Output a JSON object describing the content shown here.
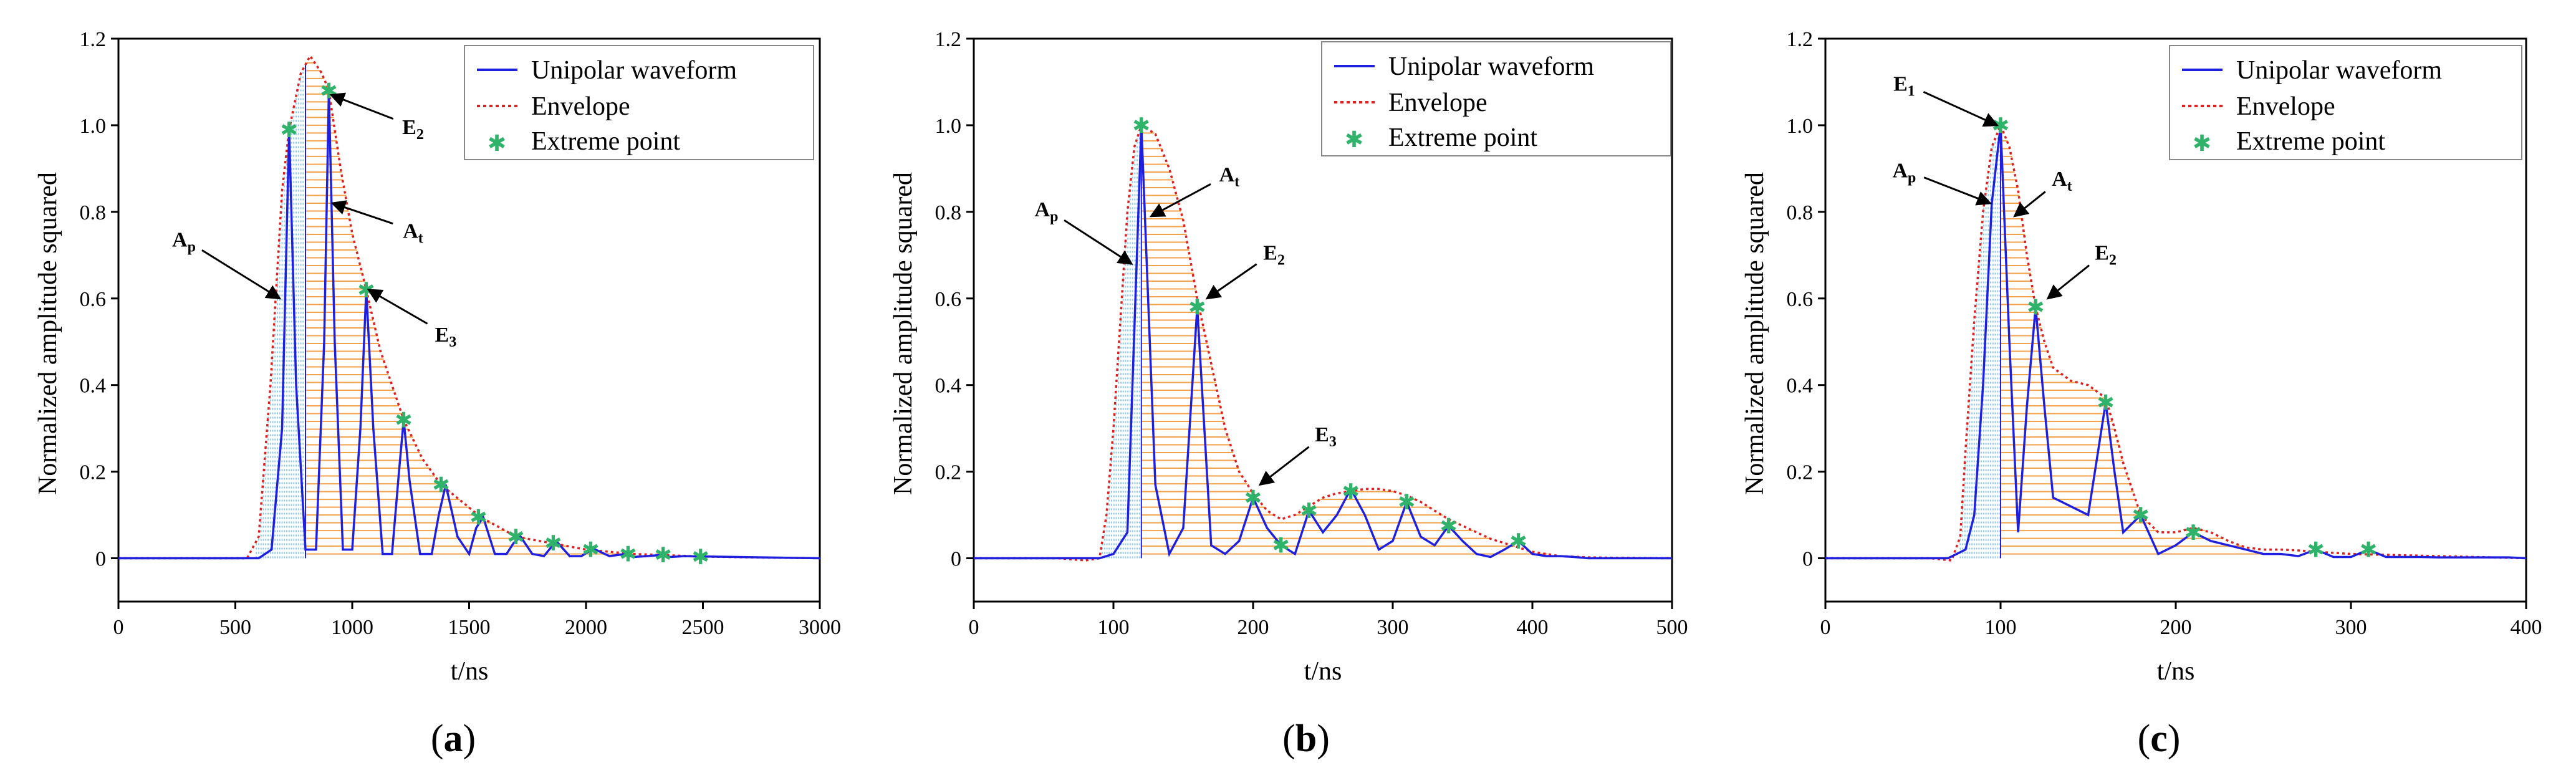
{
  "figure": {
    "panel_labels": [
      {
        "open": "(",
        "letter": "a",
        "close": ")"
      },
      {
        "open": "(",
        "letter": "b",
        "close": ")"
      },
      {
        "open": "(",
        "letter": "c",
        "close": ")"
      }
    ]
  },
  "colors": {
    "waveform": "#1f1fe0",
    "envelope": "#e02020",
    "extreme": "#2fb36a",
    "hatch_blue": "#8fc8e8",
    "hatch_orange": "#f2a24a"
  },
  "chart_data": [
    {
      "id": "a",
      "type": "line",
      "xlabel": "t/ns",
      "ylabel": "Normalized amplitude squared",
      "xlim": [
        0,
        3000
      ],
      "ylim": [
        -0.1,
        1.2
      ],
      "xticks": [
        "0",
        "500",
        "1000",
        "1500",
        "2000",
        "2500",
        "3000"
      ],
      "xtick_values": [
        0,
        500,
        1000,
        1500,
        2000,
        2500,
        3000
      ],
      "yticks": [
        "0",
        "0.2",
        "0.4",
        "0.6",
        "0.8",
        "1.0",
        "1.2"
      ],
      "ytick_values": [
        0,
        0.2,
        0.4,
        0.6,
        0.8,
        1.0,
        1.2
      ],
      "legend": {
        "position": "top-right",
        "entries": [
          "Unipolar waveform",
          "Envelope",
          "Extreme point"
        ]
      },
      "fill_split_x": 800,
      "fill_range": [
        590,
        2520
      ],
      "series": [
        {
          "name": "Unipolar waveform",
          "x": [
            0,
            600,
            655,
            700,
            730,
            760,
            800,
            845,
            880,
            900,
            925,
            960,
            1000,
            1035,
            1060,
            1090,
            1130,
            1170,
            1200,
            1220,
            1245,
            1290,
            1340,
            1370,
            1400,
            1450,
            1500,
            1530,
            1560,
            1610,
            1660,
            1690,
            1720,
            1770,
            1820,
            1850,
            1880,
            1930,
            1980,
            2010,
            2040,
            2100,
            2170,
            2200,
            2260,
            2330,
            2360,
            2420,
            2490,
            2520,
            3000
          ],
          "y": [
            0,
            0,
            0.02,
            0.3,
            0.99,
            0.4,
            0.02,
            0.02,
            0.5,
            1.08,
            0.5,
            0.02,
            0.02,
            0.3,
            0.62,
            0.3,
            0.01,
            0.01,
            0.2,
            0.32,
            0.18,
            0.01,
            0.01,
            0.1,
            0.17,
            0.05,
            0.01,
            0.07,
            0.095,
            0.01,
            0.01,
            0.035,
            0.05,
            0.01,
            0.005,
            0.025,
            0.035,
            0.005,
            0.005,
            0.015,
            0.02,
            0.005,
            0.01,
            0.003,
            0.005,
            0.008,
            0.003,
            0.005,
            0.004,
            0.004,
            0
          ]
        },
        {
          "name": "Envelope",
          "x": [
            0,
            550,
            600,
            650,
            700,
            730,
            780,
            820,
            870,
            900,
            950,
            1000,
            1060,
            1120,
            1220,
            1300,
            1380,
            1550,
            1700,
            1850,
            2000,
            2200,
            2500,
            2700,
            3000
          ],
          "y": [
            0,
            0,
            0.05,
            0.4,
            0.85,
            0.99,
            1.12,
            1.16,
            1.12,
            1.08,
            0.9,
            0.75,
            0.62,
            0.48,
            0.32,
            0.23,
            0.17,
            0.095,
            0.05,
            0.035,
            0.02,
            0.01,
            0.004,
            0.002,
            0
          ]
        }
      ],
      "extreme_points": {
        "x": [
          730,
          900,
          1060,
          1220,
          1380,
          1540,
          1700,
          1860,
          2020,
          2180,
          2330,
          2490
        ],
        "y": [
          0.99,
          1.08,
          0.62,
          0.32,
          0.17,
          0.095,
          0.05,
          0.035,
          0.02,
          0.01,
          0.008,
          0.004
        ]
      },
      "annotations": [
        {
          "main": "E",
          "sub": "2",
          "tip": [
            910,
            1.07
          ],
          "text_at": [
            1260,
            0.98
          ]
        },
        {
          "main": "A",
          "sub": "t",
          "tip": [
            915,
            0.82
          ],
          "text_at": [
            1260,
            0.74
          ]
        },
        {
          "main": "A",
          "sub": "p",
          "tip": [
            690,
            0.6
          ],
          "text_at": [
            280,
            0.72
          ]
        },
        {
          "main": "E",
          "sub": "3",
          "tip": [
            1070,
            0.62
          ],
          "text_at": [
            1400,
            0.5
          ]
        }
      ]
    },
    {
      "id": "b",
      "type": "line",
      "xlabel": "t/ns",
      "ylabel": "Normalized amplitude squared",
      "xlim": [
        0,
        500
      ],
      "ylim": [
        -0.1,
        1.2
      ],
      "xticks": [
        "0",
        "100",
        "200",
        "300",
        "400",
        "500"
      ],
      "xtick_values": [
        0,
        100,
        200,
        300,
        400,
        500
      ],
      "yticks": [
        "0",
        "0.2",
        "0.4",
        "0.6",
        "0.8",
        "1.0",
        "1.2"
      ],
      "ytick_values": [
        0,
        0.2,
        0.4,
        0.6,
        0.8,
        1.0,
        1.2
      ],
      "legend": {
        "position": "top-right",
        "entries": [
          "Unipolar waveform",
          "Envelope",
          "Extreme point"
        ]
      },
      "fill_split_x": 120,
      "fill_range": [
        92,
        435
      ],
      "series": [
        {
          "name": "Unipolar waveform",
          "x": [
            0,
            80,
            90,
            100,
            110,
            120,
            130,
            140,
            150,
            160,
            170,
            180,
            190,
            200,
            210,
            220,
            230,
            240,
            250,
            260,
            270,
            280,
            290,
            300,
            310,
            320,
            330,
            340,
            350,
            360,
            370,
            380,
            390,
            400,
            410,
            420,
            430,
            440,
            500
          ],
          "y": [
            0,
            0,
            0,
            0.01,
            0.06,
            1.0,
            0.17,
            0.01,
            0.07,
            0.58,
            0.03,
            0.01,
            0.04,
            0.14,
            0.07,
            0.03,
            0.01,
            0.11,
            0.06,
            0.1,
            0.16,
            0.1,
            0.02,
            0.04,
            0.13,
            0.05,
            0.03,
            0.075,
            0.04,
            0.01,
            0.003,
            0.02,
            0.04,
            0.01,
            0.005,
            0.005,
            0.003,
            0,
            0
          ]
        },
        {
          "name": "Envelope",
          "x": [
            0,
            60,
            80,
            90,
            95,
            100,
            105,
            110,
            115,
            120,
            130,
            140,
            150,
            160,
            170,
            180,
            190,
            200,
            210,
            220,
            230,
            240,
            250,
            260,
            270,
            280,
            290,
            300,
            310,
            320,
            330,
            340,
            350,
            360,
            370,
            380,
            390,
            400,
            420,
            440,
            460,
            500
          ],
          "y": [
            0,
            0,
            -0.005,
            0,
            0.1,
            0.3,
            0.55,
            0.8,
            0.95,
            1.0,
            0.98,
            0.9,
            0.78,
            0.6,
            0.45,
            0.3,
            0.2,
            0.15,
            0.11,
            0.09,
            0.1,
            0.12,
            0.14,
            0.15,
            0.155,
            0.16,
            0.16,
            0.155,
            0.145,
            0.13,
            0.11,
            0.09,
            0.075,
            0.06,
            0.045,
            0.035,
            0.025,
            0.015,
            0.005,
            0.002,
            0.001,
            0
          ]
        }
      ],
      "extreme_points": {
        "x": [
          120,
          160,
          200,
          220,
          240,
          270,
          310,
          340,
          390
        ],
        "y": [
          1.0,
          0.58,
          0.14,
          0.03,
          0.11,
          0.155,
          0.13,
          0.075,
          0.04
        ]
      },
      "annotations": [
        {
          "main": "A",
          "sub": "p",
          "tip": [
            113,
            0.68
          ],
          "text_at": [
            52,
            0.79
          ]
        },
        {
          "main": "A",
          "sub": "t",
          "tip": [
            127,
            0.79
          ],
          "text_at": [
            183,
            0.87
          ]
        },
        {
          "main": "E",
          "sub": "2",
          "tip": [
            167,
            0.6
          ],
          "text_at": [
            215,
            0.69
          ]
        },
        {
          "main": "E",
          "sub": "3",
          "tip": [
            205,
            0.17
          ],
          "text_at": [
            252,
            0.27
          ]
        }
      ]
    },
    {
      "id": "c",
      "type": "line",
      "xlabel": "t/ns",
      "ylabel": "Normalized amplitude squared",
      "xlim": [
        0,
        400
      ],
      "ylim": [
        -0.1,
        1.2
      ],
      "xticks": [
        "0",
        "100",
        "200",
        "300",
        "400"
      ],
      "xtick_values": [
        0,
        100,
        200,
        300,
        400
      ],
      "yticks": [
        "0",
        "0.2",
        "0.4",
        "0.6",
        "0.8",
        "1.0",
        "1.2"
      ],
      "ytick_values": [
        0,
        0.2,
        0.4,
        0.6,
        0.8,
        1.0,
        1.2
      ],
      "legend": {
        "position": "top-right",
        "entries": [
          "Unipolar waveform",
          "Envelope",
          "Extreme point"
        ]
      },
      "fill_split_x": 100,
      "fill_range": [
        77,
        250
      ],
      "series": [
        {
          "name": "Unipolar waveform",
          "x": [
            0,
            70,
            80,
            85,
            90,
            95,
            100,
            105,
            110,
            115,
            120,
            125,
            130,
            140,
            150,
            160,
            165,
            170,
            175,
            180,
            190,
            200,
            210,
            220,
            230,
            240,
            250,
            260,
            270,
            280,
            290,
            300,
            310,
            320,
            330,
            340,
            350,
            360,
            370,
            380,
            390,
            400
          ],
          "y": [
            0,
            0,
            0.02,
            0.1,
            0.4,
            0.82,
            1.0,
            0.5,
            0.06,
            0.35,
            0.58,
            0.35,
            0.14,
            0.12,
            0.1,
            0.36,
            0.2,
            0.06,
            0.08,
            0.1,
            0.01,
            0.03,
            0.06,
            0.04,
            0.03,
            0.02,
            0.01,
            0.01,
            0.005,
            0.02,
            0.003,
            0.003,
            0.02,
            0.003,
            0.003,
            0.003,
            0.002,
            0.002,
            0.002,
            0.002,
            0.002,
            0
          ]
        },
        {
          "name": "Envelope",
          "x": [
            0,
            60,
            72,
            77,
            80,
            85,
            90,
            95,
            100,
            105,
            110,
            115,
            120,
            125,
            130,
            140,
            150,
            160,
            165,
            170,
            180,
            190,
            200,
            210,
            220,
            230,
            240,
            250,
            260,
            270,
            280,
            300,
            320,
            350,
            400
          ],
          "y": [
            0,
            0,
            -0.005,
            0.05,
            0.25,
            0.55,
            0.8,
            0.95,
            1.0,
            0.95,
            0.85,
            0.7,
            0.58,
            0.5,
            0.44,
            0.41,
            0.4,
            0.37,
            0.3,
            0.22,
            0.1,
            0.06,
            0.06,
            0.07,
            0.06,
            0.04,
            0.025,
            0.02,
            0.02,
            0.018,
            0.015,
            0.01,
            0.008,
            0.005,
            0
          ]
        }
      ],
      "extreme_points": {
        "x": [
          100,
          120,
          160,
          180,
          210,
          280,
          310
        ],
        "y": [
          1.0,
          0.58,
          0.36,
          0.1,
          0.06,
          0.02,
          0.02
        ]
      },
      "annotations": [
        {
          "main": "E",
          "sub": "1",
          "tip": [
            98,
            1.0
          ],
          "text_at": [
            45,
            1.08
          ]
        },
        {
          "main": "A",
          "sub": "p",
          "tip": [
            94,
            0.82
          ],
          "text_at": [
            45,
            0.88
          ]
        },
        {
          "main": "A",
          "sub": "t",
          "tip": [
            108,
            0.79
          ],
          "text_at": [
            135,
            0.86
          ]
        },
        {
          "main": "E",
          "sub": "2",
          "tip": [
            127,
            0.6
          ],
          "text_at": [
            160,
            0.69
          ]
        }
      ]
    }
  ]
}
